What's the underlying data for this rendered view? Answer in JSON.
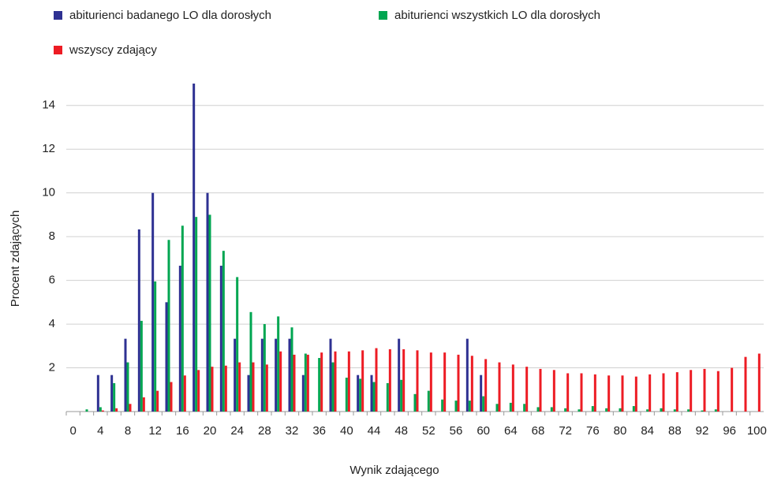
{
  "chart_data": {
    "type": "bar",
    "x_label": "Wynik zdającego",
    "y_label": "Procent zdających",
    "categories": [
      0,
      null,
      4,
      null,
      8,
      null,
      12,
      null,
      16,
      null,
      20,
      null,
      24,
      null,
      28,
      null,
      32,
      null,
      36,
      null,
      40,
      null,
      44,
      null,
      48,
      null,
      52,
      null,
      56,
      null,
      60,
      null,
      64,
      null,
      68,
      null,
      72,
      null,
      76,
      null,
      80,
      null,
      84,
      null,
      88,
      null,
      92,
      null,
      96,
      null,
      100
    ],
    "series": [
      {
        "name": "abiturienci badanego LO dla dorosłych",
        "color": "#2e3192",
        "values": [
          0,
          0,
          1.67,
          1.67,
          3.33,
          8.33,
          10,
          5,
          6.67,
          15,
          10,
          6.67,
          3.33,
          1.67,
          3.33,
          3.33,
          3.33,
          1.67,
          0,
          3.33,
          0,
          1.67,
          1.67,
          0,
          3.33,
          0,
          0,
          0,
          0,
          3.33,
          1.67,
          0,
          0,
          0,
          0,
          0,
          0,
          0,
          0,
          0,
          0,
          0,
          0,
          0,
          0,
          0,
          0,
          0,
          0,
          0,
          0
        ]
      },
      {
        "name": "abiturienci wszystkich LO dla dorosłych",
        "color": "#00a651",
        "values": [
          0,
          0.1,
          0.2,
          1.3,
          2.25,
          4.15,
          5.95,
          7.85,
          8.5,
          8.9,
          9.0,
          7.35,
          6.15,
          4.55,
          4.0,
          4.35,
          3.85,
          2.65,
          2.45,
          2.25,
          1.55,
          1.5,
          1.35,
          1.3,
          1.45,
          0.8,
          0.95,
          0.55,
          0.5,
          0.5,
          0.7,
          0.35,
          0.4,
          0.35,
          0.2,
          0.2,
          0.15,
          0.1,
          0.25,
          0.15,
          0.15,
          0.25,
          0.1,
          0.15,
          0.1,
          0.1,
          0.05,
          0.1,
          0,
          0,
          0
        ]
      },
      {
        "name": "wszyscy zdający",
        "color": "#ed1c24",
        "values": [
          0,
          0,
          0.05,
          0.15,
          0.35,
          0.65,
          0.95,
          1.35,
          1.65,
          1.9,
          2.05,
          2.1,
          2.25,
          2.25,
          2.15,
          2.75,
          2.6,
          2.6,
          2.7,
          2.75,
          2.75,
          2.8,
          2.9,
          2.85,
          2.85,
          2.8,
          2.7,
          2.7,
          2.6,
          2.55,
          2.4,
          2.25,
          2.15,
          2.05,
          1.95,
          1.9,
          1.75,
          1.75,
          1.7,
          1.65,
          1.65,
          1.6,
          1.7,
          1.75,
          1.8,
          1.9,
          1.95,
          1.85,
          2.0,
          2.5,
          2.65
        ]
      }
    ],
    "ylim": [
      0,
      15
    ],
    "yticks": [
      2,
      4,
      6,
      8,
      10,
      12,
      14
    ],
    "grid": true,
    "legend": "top"
  }
}
